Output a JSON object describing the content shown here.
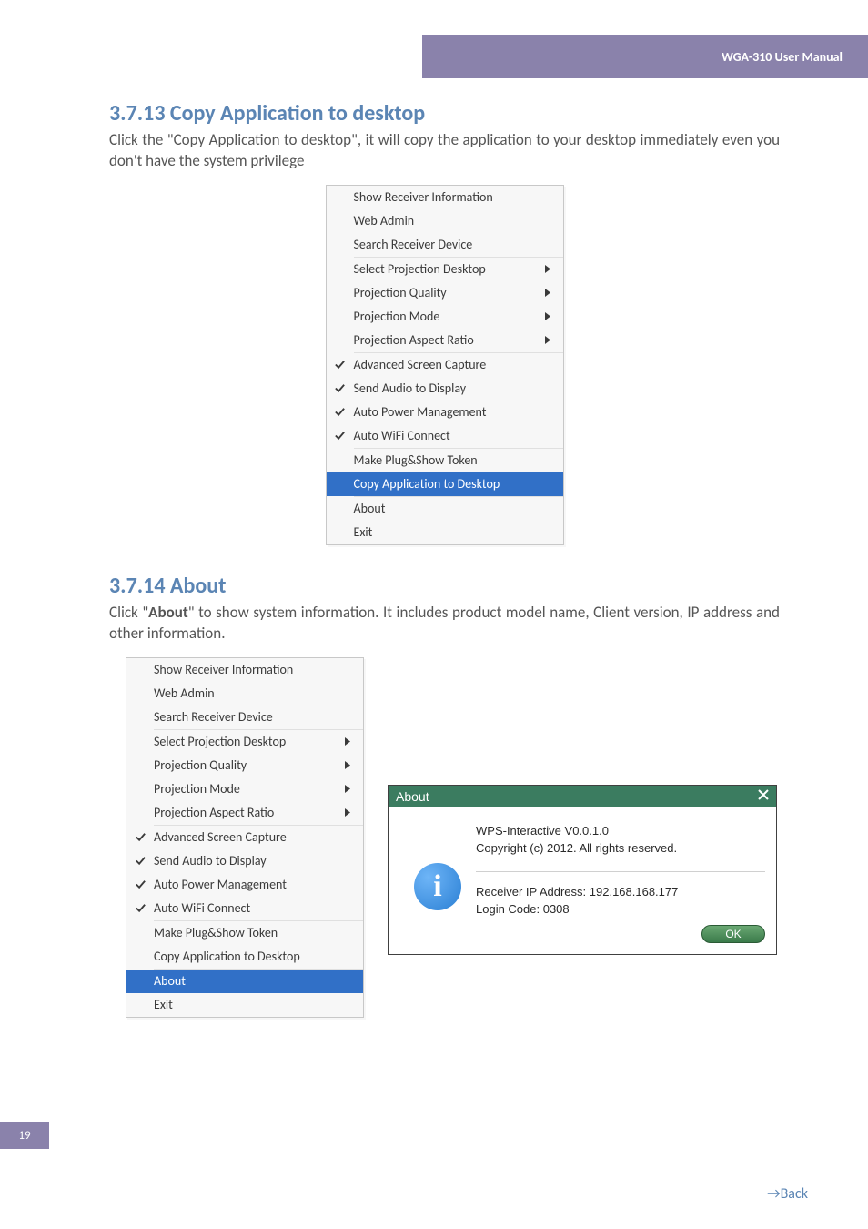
{
  "header": {
    "title": "WGA-310 User Manual"
  },
  "section1": {
    "heading": "3.7.13 Copy Application to desktop",
    "body": "Click the \"Copy Application to desktop\", it will copy the application to your desktop immediately even you don't have the system privilege"
  },
  "section2": {
    "heading": "3.7.14 About",
    "body_pre": "Click \"",
    "body_bold": "About",
    "body_post": "\" to show system information. It includes product model name, Client version, IP address and other information."
  },
  "menu": {
    "groups": [
      [
        {
          "label": "Show Receiver Information",
          "checked": false,
          "submenu": false
        },
        {
          "label": "Web Admin",
          "checked": false,
          "submenu": false
        },
        {
          "label": "Search Receiver Device",
          "checked": false,
          "submenu": false
        }
      ],
      [
        {
          "label": "Select Projection Desktop",
          "checked": false,
          "submenu": true
        },
        {
          "label": "Projection Quality",
          "checked": false,
          "submenu": true
        },
        {
          "label": "Projection Mode",
          "checked": false,
          "submenu": true
        },
        {
          "label": "Projection Aspect Ratio",
          "checked": false,
          "submenu": true
        }
      ],
      [
        {
          "label": "Advanced Screen Capture",
          "checked": true,
          "submenu": false
        },
        {
          "label": "Send Audio to Display",
          "checked": true,
          "submenu": false
        },
        {
          "label": "Auto Power Management",
          "checked": true,
          "submenu": false
        },
        {
          "label": "Auto WiFi Connect",
          "checked": true,
          "submenu": false
        }
      ],
      [
        {
          "label": "Make Plug&Show Token",
          "checked": false,
          "submenu": false
        },
        {
          "label": "Copy Application to Desktop",
          "checked": false,
          "submenu": false
        }
      ],
      [
        {
          "label": "About",
          "checked": false,
          "submenu": false
        },
        {
          "label": "Exit",
          "checked": false,
          "submenu": false
        }
      ]
    ],
    "highlight1": "Copy Application to Desktop",
    "highlight2": "About"
  },
  "about_dialog": {
    "title": "About",
    "line1": "WPS-Interactive V0.0.1.0",
    "line2": "Copyright (c) 2012. All rights reserved.",
    "line3": "Receiver IP Address: 192.168.168.177",
    "line4": "Login Code: 0308",
    "ok": "OK"
  },
  "footer": {
    "page_number": "19",
    "back_arrow": "→",
    "back_label": "Back"
  },
  "colors": {
    "header_bar": "#8a82ab",
    "heading": "#5b85b4",
    "body_text": "#565656",
    "menu_bg": "#f7f7f7",
    "menu_border": "#c8c8c8",
    "highlight_bg": "#3170c7",
    "dialog_title_bg": "#3b7c60"
  }
}
